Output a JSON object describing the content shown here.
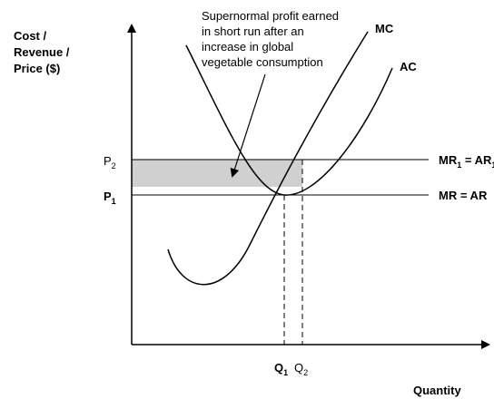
{
  "y_axis_label": [
    "Cost /",
    "Revenue /",
    "Price ($)"
  ],
  "x_axis_label": "Quantity",
  "annotation": [
    "Supernormal profit earned",
    "in short run after an",
    "increase in global",
    "vegetable consumption"
  ],
  "curves": {
    "mc": "MC",
    "ac": "AC"
  },
  "lines": {
    "mr1": {
      "a": "MR",
      "a_sub": "1",
      "b": " = AR",
      "b_sub": "1"
    },
    "mr": "MR = AR"
  },
  "prices": {
    "p2": {
      "main": "P",
      "sub": "2"
    },
    "p1": {
      "main": "P",
      "sub": "1"
    }
  },
  "quantities": {
    "q1": {
      "main": "Q",
      "sub": "1"
    },
    "q2": {
      "main": "Q",
      "sub": "2"
    }
  }
}
